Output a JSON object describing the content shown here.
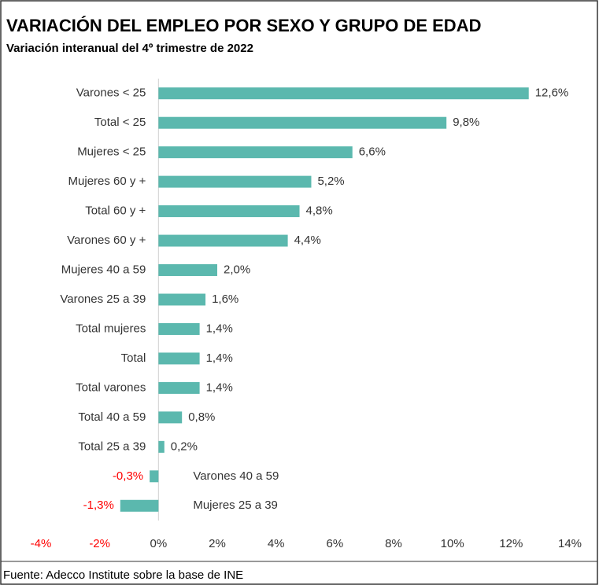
{
  "chart_data": {
    "type": "bar",
    "orientation": "horizontal",
    "title": "VARIACIÓN DEL EMPLEO POR SEXO Y GRUPO DE EDAD",
    "subtitle": "Variación interanual del 4º trimestre de 2022",
    "source": "Fuente: Adecco Institute sobre la base de INE",
    "categories": [
      "Varones < 25",
      "Total < 25",
      "Mujeres < 25",
      "Mujeres 60 y +",
      "Total 60 y +",
      "Varones 60 y +",
      "Mujeres 40 a 59",
      "Varones 25 a 39",
      "Total mujeres",
      "Total",
      "Total varones",
      "Total 40 a 59",
      "Total 25 a 39",
      "Varones 40 a 59",
      "Mujeres 25 a 39"
    ],
    "values": [
      12.6,
      9.8,
      6.6,
      5.2,
      4.8,
      4.4,
      2.0,
      1.6,
      1.4,
      1.4,
      1.4,
      0.8,
      0.2,
      -0.3,
      -1.3
    ],
    "value_labels": [
      "12,6%",
      "9,8%",
      "6,6%",
      "5,2%",
      "4,8%",
      "4,4%",
      "2,0%",
      "1,6%",
      "1,4%",
      "1,4%",
      "1,4%",
      "0,8%",
      "0,2%",
      "-0,3%",
      "-1,3%"
    ],
    "color": "#5bb8ae",
    "negative_color": "#ff0000",
    "xlim": [
      -4,
      14
    ],
    "xticks": [
      {
        "value": -4,
        "label": "-4%"
      },
      {
        "value": -2,
        "label": "-2%"
      },
      {
        "value": 0,
        "label": "0%"
      },
      {
        "value": 2,
        "label": "2%"
      },
      {
        "value": 4,
        "label": "4%"
      },
      {
        "value": 6,
        "label": "6%"
      },
      {
        "value": 8,
        "label": "8%"
      },
      {
        "value": 10,
        "label": "10%"
      },
      {
        "value": 12,
        "label": "12%"
      },
      {
        "value": 14,
        "label": "14%"
      }
    ]
  }
}
